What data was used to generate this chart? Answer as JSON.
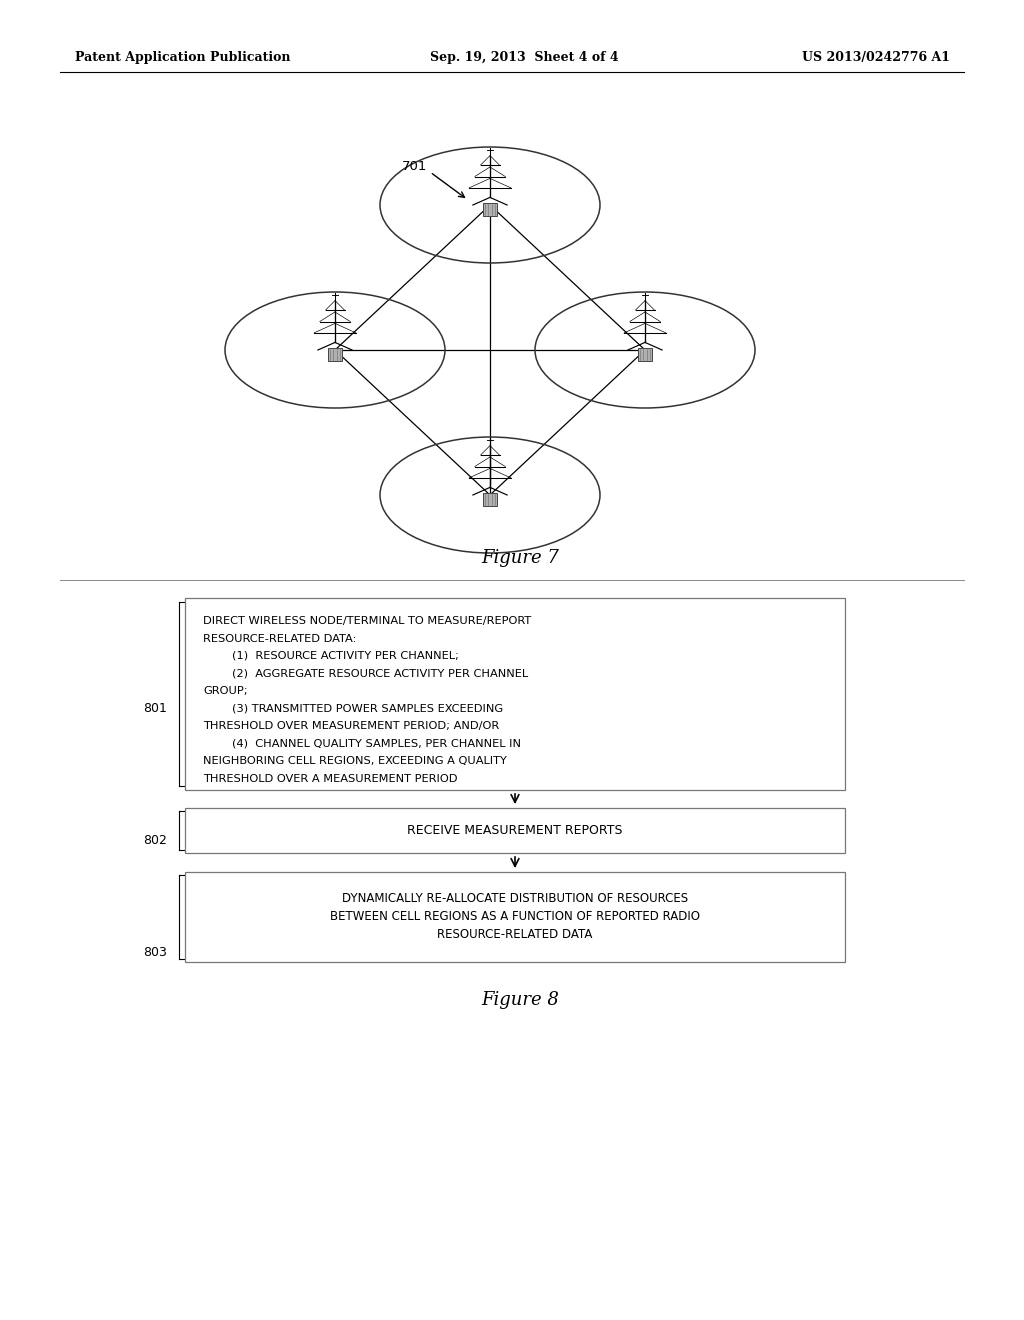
{
  "bg_color": "#ffffff",
  "header_left": "Patent Application Publication",
  "header_mid": "Sep. 19, 2013  Sheet 4 of 4",
  "header_right": "US 2013/0242776 A1",
  "fig7_label": "Figure 7",
  "fig8_label": "Figure 8",
  "label_701": "701",
  "label_801": "801",
  "label_802": "802",
  "label_803": "803",
  "box1_lines": [
    "DIRECT WIRELESS NODE/TERMINAL TO MEASURE/REPORT",
    "RESOURCE-RELATED DATA:",
    "        (1)  RESOURCE ACTIVITY PER CHANNEL;",
    "        (2)  AGGREGATE RESOURCE ACTIVITY PER CHANNEL",
    "GROUP;",
    "        (3) TRANSMITTED POWER SAMPLES EXCEEDING",
    "THRESHOLD OVER MEASUREMENT PERIOD; AND/OR",
    "        (4)  CHANNEL QUALITY SAMPLES, PER CHANNEL IN",
    "NEIGHBORING CELL REGIONS, EXCEEDING A QUALITY",
    "THRESHOLD OVER A MEASUREMENT PERIOD"
  ],
  "box2_text": "RECEIVE MEASUREMENT REPORTS",
  "box3_lines": [
    "DYNAMICALLY RE-ALLOCATE DISTRIBUTION OF RESOURCES",
    "BETWEEN CELL REGIONS AS A FUNCTION OF REPORTED RADIO",
    "RESOURCE-RELATED DATA"
  ],
  "text_color": "#000000",
  "box_edge_color": "#777777",
  "line_color": "#000000"
}
